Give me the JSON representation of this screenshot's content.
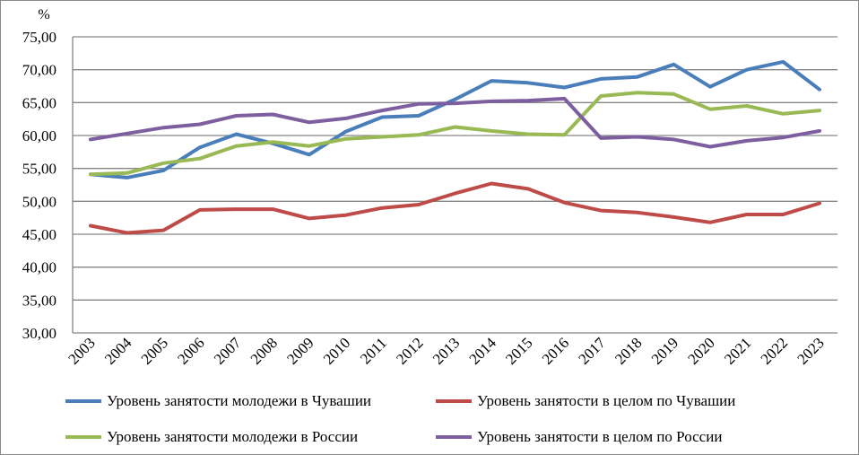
{
  "chart_data": {
    "type": "line",
    "ylabel": "%",
    "ylim": [
      30,
      75
    ],
    "ystep": 5,
    "grid": true,
    "legend_position": "bottom",
    "categories": [
      "2003",
      "2004",
      "2005",
      "2006",
      "2007",
      "2008",
      "2009",
      "2010",
      "2011",
      "2012",
      "2013",
      "2014",
      "2015",
      "2016",
      "2017",
      "2018",
      "2019",
      "2020",
      "2021",
      "2022",
      "2023"
    ],
    "y_tick_labels": [
      "30,00",
      "35,00",
      "40,00",
      "45,00",
      "50,00",
      "55,00",
      "60,00",
      "65,00",
      "70,00",
      "75,00"
    ],
    "series": [
      {
        "name": "Уровень занятости молодежи в Чувашии",
        "color": "#4a7ebb",
        "values": [
          54.1,
          53.6,
          54.7,
          58.2,
          60.2,
          58.8,
          57.1,
          60.6,
          62.8,
          63.0,
          65.5,
          68.3,
          68.0,
          67.3,
          68.6,
          68.9,
          70.8,
          67.4,
          70.0,
          71.2,
          67.0
        ]
      },
      {
        "name": "Уровень занятости в целом по Чувашии",
        "color": "#be4b48",
        "values": [
          46.3,
          45.2,
          45.6,
          48.7,
          48.8,
          48.8,
          47.4,
          47.9,
          49.0,
          49.5,
          51.2,
          52.7,
          51.9,
          49.8,
          48.6,
          48.3,
          47.6,
          46.8,
          48.0,
          48.0,
          49.7
        ]
      },
      {
        "name": "Уровень занятости молодежи в России",
        "color": "#98b954",
        "values": [
          54.1,
          54.3,
          55.8,
          56.5,
          58.4,
          59.0,
          58.4,
          59.5,
          59.8,
          60.1,
          61.3,
          60.7,
          60.2,
          60.1,
          66.0,
          66.5,
          66.3,
          64.0,
          64.5,
          63.3,
          63.8
        ]
      },
      {
        "name": "Уровень занятости в целом по России",
        "color": "#7d5fa0",
        "values": [
          59.4,
          60.3,
          61.2,
          61.7,
          63.0,
          63.2,
          62.0,
          62.6,
          63.8,
          64.8,
          64.9,
          65.2,
          65.3,
          65.6,
          59.6,
          59.8,
          59.4,
          58.3,
          59.2,
          59.7,
          60.7
        ]
      }
    ]
  }
}
